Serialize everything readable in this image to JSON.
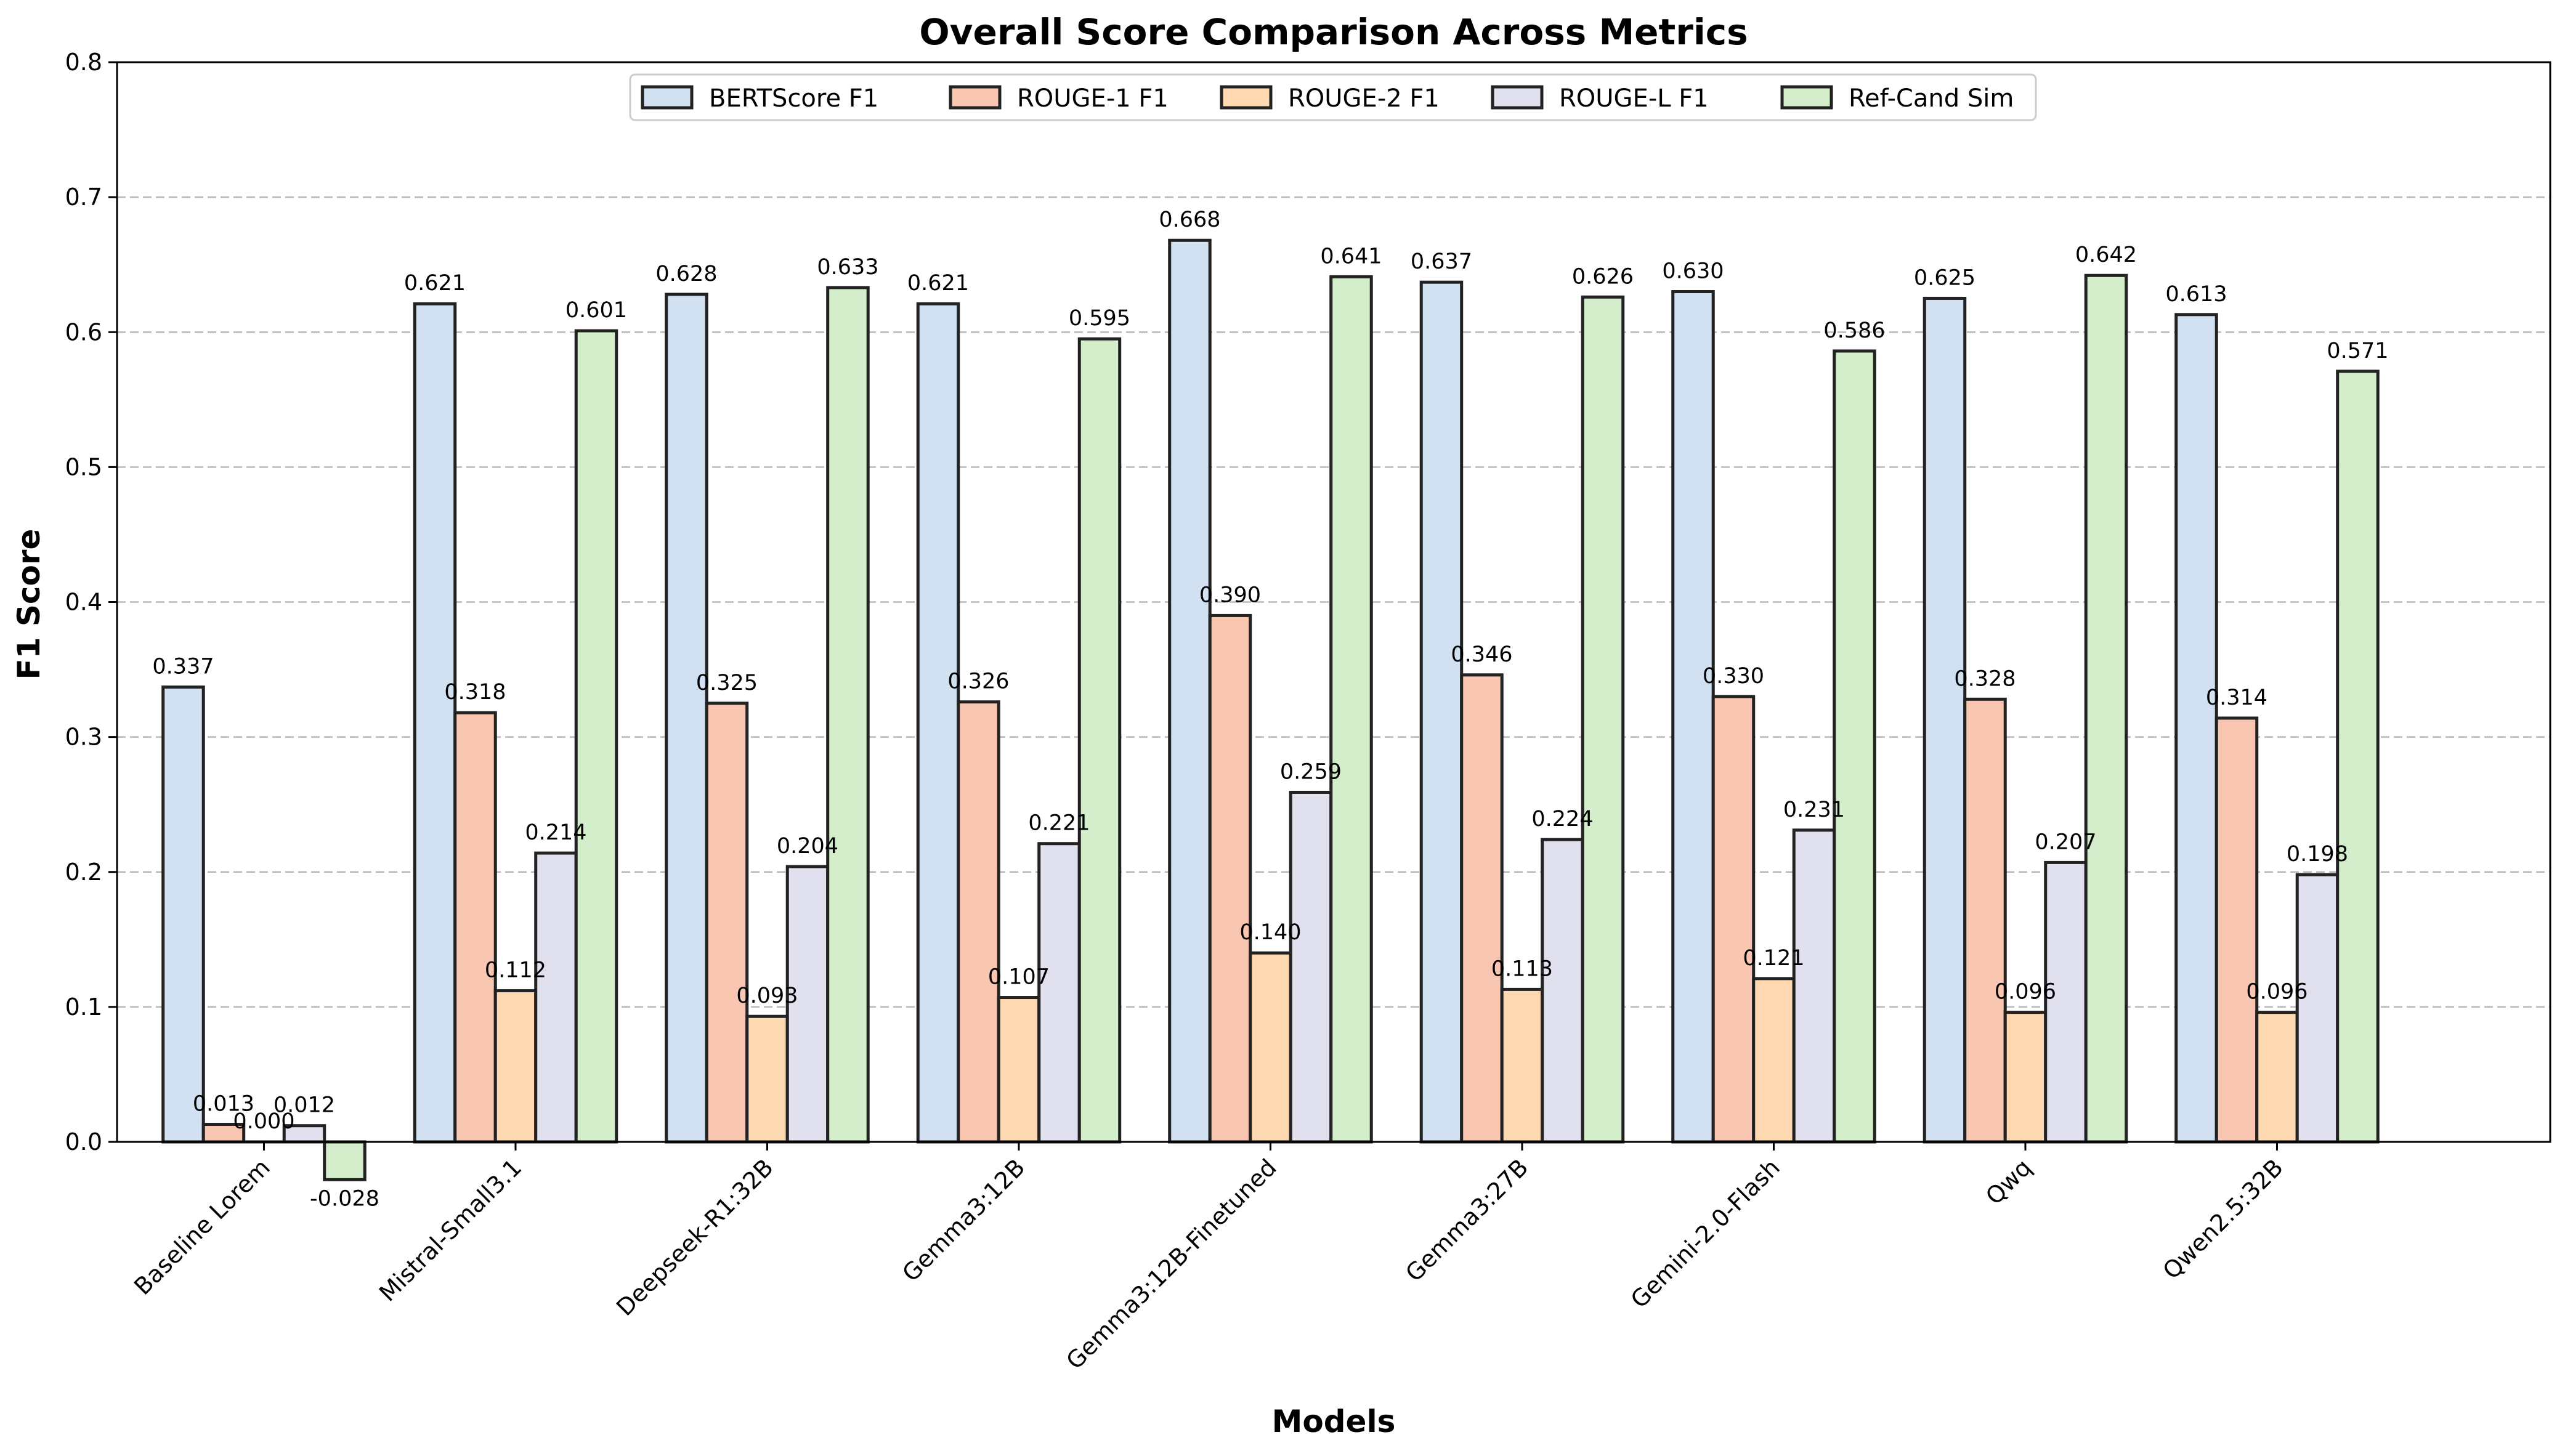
{
  "chart_data": {
    "type": "bar",
    "title": "Overall Score Comparison Across Metrics",
    "xlabel": "Models",
    "ylabel": "F1 Score",
    "ylim": [
      0,
      0.8
    ],
    "yticks": [
      "0.0",
      "0.1",
      "0.2",
      "0.3",
      "0.4",
      "0.5",
      "0.6",
      "0.7",
      "0.8"
    ],
    "grid": true,
    "legend_position": "top-center",
    "categories": [
      "Baseline Lorem",
      "Mistral-Small3.1",
      "Deepseek-R1:32B",
      "Gemma3:12B",
      "Gemma3:12B-Finetuned",
      "Gemma3:27B",
      "Gemini-2.0-Flash",
      "Qwq",
      "Qwen2.5:32B"
    ],
    "series": [
      {
        "name": "BERTScore F1",
        "color": "#d2e1f2",
        "values": [
          0.337,
          0.621,
          0.628,
          0.621,
          0.668,
          0.637,
          0.63,
          0.625,
          0.613
        ],
        "labels": [
          "0.337",
          "0.621",
          "0.628",
          "0.621",
          "0.668",
          "0.637",
          "0.630",
          "0.625",
          "0.613"
        ]
      },
      {
        "name": "ROUGE-1 F1",
        "color": "#f9c7b1",
        "values": [
          0.013,
          0.318,
          0.325,
          0.326,
          0.39,
          0.346,
          0.33,
          0.328,
          0.314
        ],
        "labels": [
          "0.013",
          "0.318",
          "0.325",
          "0.326",
          "0.390",
          "0.346",
          "0.330",
          "0.328",
          "0.314"
        ]
      },
      {
        "name": "ROUGE-2 F1",
        "color": "#fdd8b0",
        "values": [
          0.0,
          0.112,
          0.093,
          0.107,
          0.14,
          0.113,
          0.121,
          0.096,
          0.096
        ],
        "labels": [
          "0.000",
          "0.112",
          "0.093",
          "0.107",
          "0.140",
          "0.113",
          "0.121",
          "0.096",
          "0.096"
        ]
      },
      {
        "name": "ROUGE-L F1",
        "color": "#e1e0ee",
        "values": [
          0.012,
          0.214,
          0.204,
          0.221,
          0.259,
          0.224,
          0.231,
          0.207,
          0.198
        ],
        "labels": [
          "0.012",
          "0.214",
          "0.204",
          "0.221",
          "0.259",
          "0.224",
          "0.231",
          "0.207",
          "0.198"
        ]
      },
      {
        "name": "Ref-Cand Sim",
        "color": "#d4eecb",
        "values": [
          -0.028,
          0.601,
          0.633,
          0.595,
          0.641,
          0.626,
          0.586,
          0.642,
          0.571
        ],
        "labels": [
          "-0.028",
          "0.601",
          "0.633",
          "0.595",
          "0.641",
          "0.626",
          "0.586",
          "0.642",
          "0.571"
        ]
      }
    ],
    "edge_color": "#222222"
  }
}
